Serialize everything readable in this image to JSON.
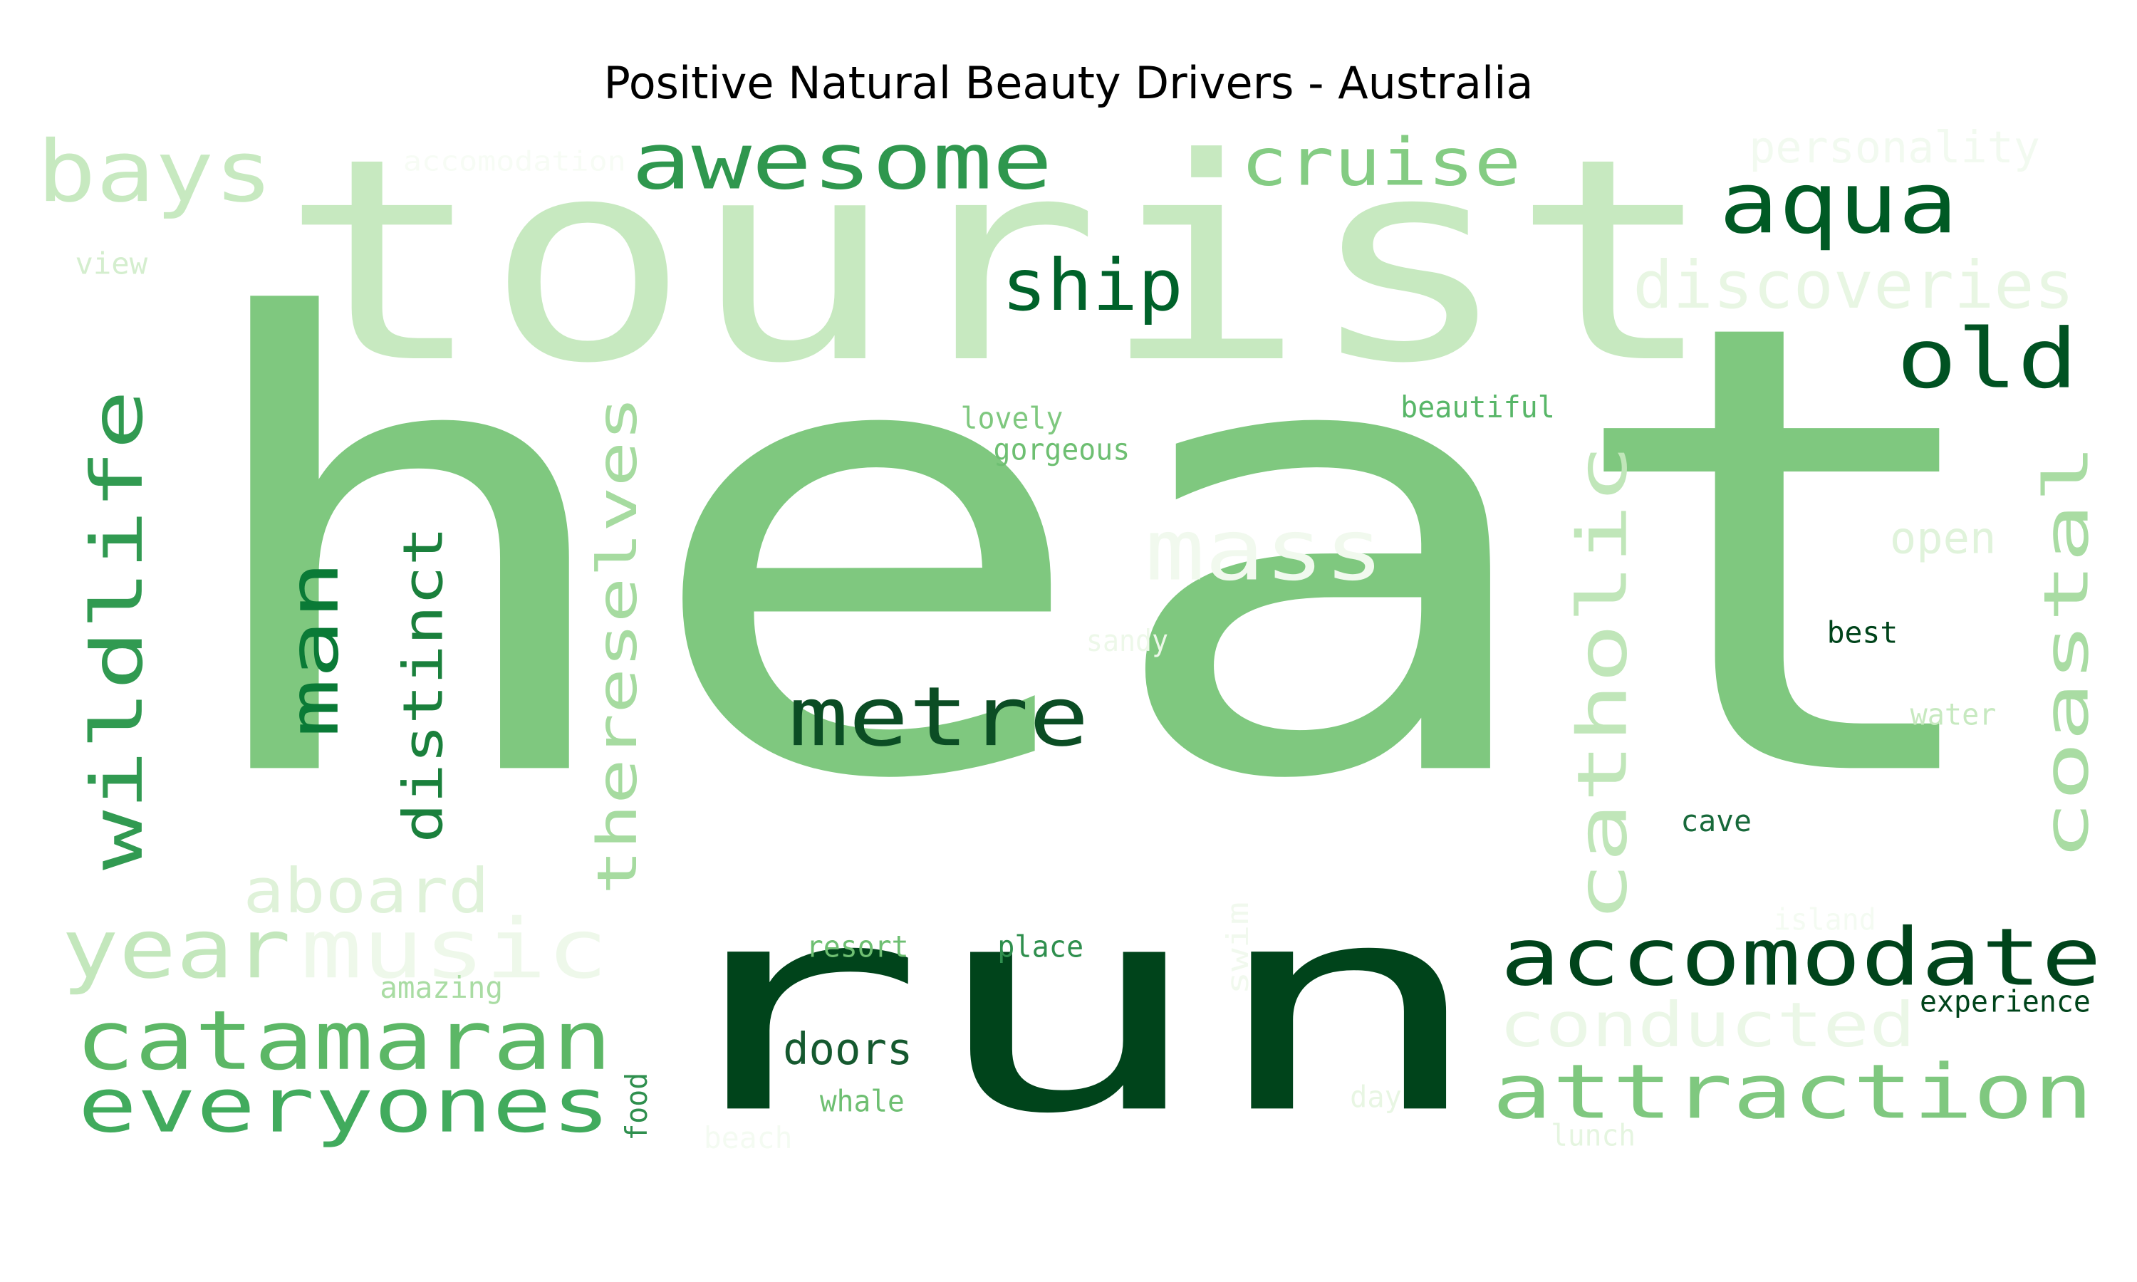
{
  "title": "Positive Natural Beauty Drivers - Australia",
  "colors": {
    "c1": "#f7fcf5",
    "c2": "#e5f5e0",
    "c3": "#c7e9c0",
    "c4": "#a1d99b",
    "c5": "#74c476",
    "c6": "#41ab5d",
    "c7": "#238b45",
    "c8": "#006d2c",
    "c9": "#00441b"
  },
  "words": [
    {
      "text": "heat",
      "color": "#7fc87f"
    },
    {
      "text": "tourist",
      "color": "#c7e9c0"
    },
    {
      "text": "run",
      "color": "#00441b"
    },
    {
      "text": "awesome",
      "color": "#2f974e"
    },
    {
      "text": "cruise",
      "color": "#84cc83"
    },
    {
      "text": "aqua",
      "color": "#005a24"
    },
    {
      "text": "bays",
      "color": "#c7e9c0"
    },
    {
      "text": "personality",
      "color": "#f2faf0"
    },
    {
      "text": "accomodation",
      "color": "#f7fcf5"
    },
    {
      "text": "view",
      "color": "#d4eece"
    },
    {
      "text": "ship",
      "color": "#00622a"
    },
    {
      "text": "discoveries",
      "color": "#e8f6e3"
    },
    {
      "text": "old",
      "color": "#005222"
    },
    {
      "text": "wildlife",
      "color": "#319a51"
    },
    {
      "text": "man",
      "color": "#0a7a36"
    },
    {
      "text": "distinct",
      "color": "#1a803c"
    },
    {
      "text": "thereselves",
      "color": "#a6dba0"
    },
    {
      "text": "lovely",
      "color": "#7fc87f"
    },
    {
      "text": "gorgeous",
      "color": "#6ebf72"
    },
    {
      "text": "beautiful",
      "color": "#58b668"
    },
    {
      "text": "mass",
      "color": "#f1f9ee"
    },
    {
      "text": "catholic",
      "color": "#c0e6b9"
    },
    {
      "text": "coastal",
      "color": "#a9dca3"
    },
    {
      "text": "open",
      "color": "#e0f3db"
    },
    {
      "text": "metre",
      "color": "#0b4d24"
    },
    {
      "text": "sandy",
      "color": "#edf8e9"
    },
    {
      "text": "best",
      "color": "#00441b"
    },
    {
      "text": "water",
      "color": "#c7e9c0"
    },
    {
      "text": "cave",
      "color": "#17693a"
    },
    {
      "text": "aboard",
      "color": "#dff2d9"
    },
    {
      "text": "year",
      "color": "#c3e7bc"
    },
    {
      "text": "music",
      "color": "#eef8ea"
    },
    {
      "text": "resort",
      "color": "#6ebf72"
    },
    {
      "text": "place",
      "color": "#2f8f4e"
    },
    {
      "text": "swim",
      "color": "#f1f9ee"
    },
    {
      "text": "island",
      "color": "#f4fbf2"
    },
    {
      "text": "accomodate",
      "color": "#00441b"
    },
    {
      "text": "amazing",
      "color": "#a9dca3"
    },
    {
      "text": "catamaran",
      "color": "#5cb766"
    },
    {
      "text": "conducted",
      "color": "#ebf7e7"
    },
    {
      "text": "experience",
      "color": "#00441b"
    },
    {
      "text": "doors",
      "color": "#15592f"
    },
    {
      "text": "everyones",
      "color": "#41ab5d"
    },
    {
      "text": "attraction",
      "color": "#7fc87f"
    },
    {
      "text": "food",
      "color": "#2f8f4e"
    },
    {
      "text": "whale",
      "color": "#6ebf72"
    },
    {
      "text": "day",
      "color": "#e8f6e3"
    },
    {
      "text": "beach",
      "color": "#f4fbf2"
    },
    {
      "text": "lunch",
      "color": "#e5f5e0"
    }
  ]
}
